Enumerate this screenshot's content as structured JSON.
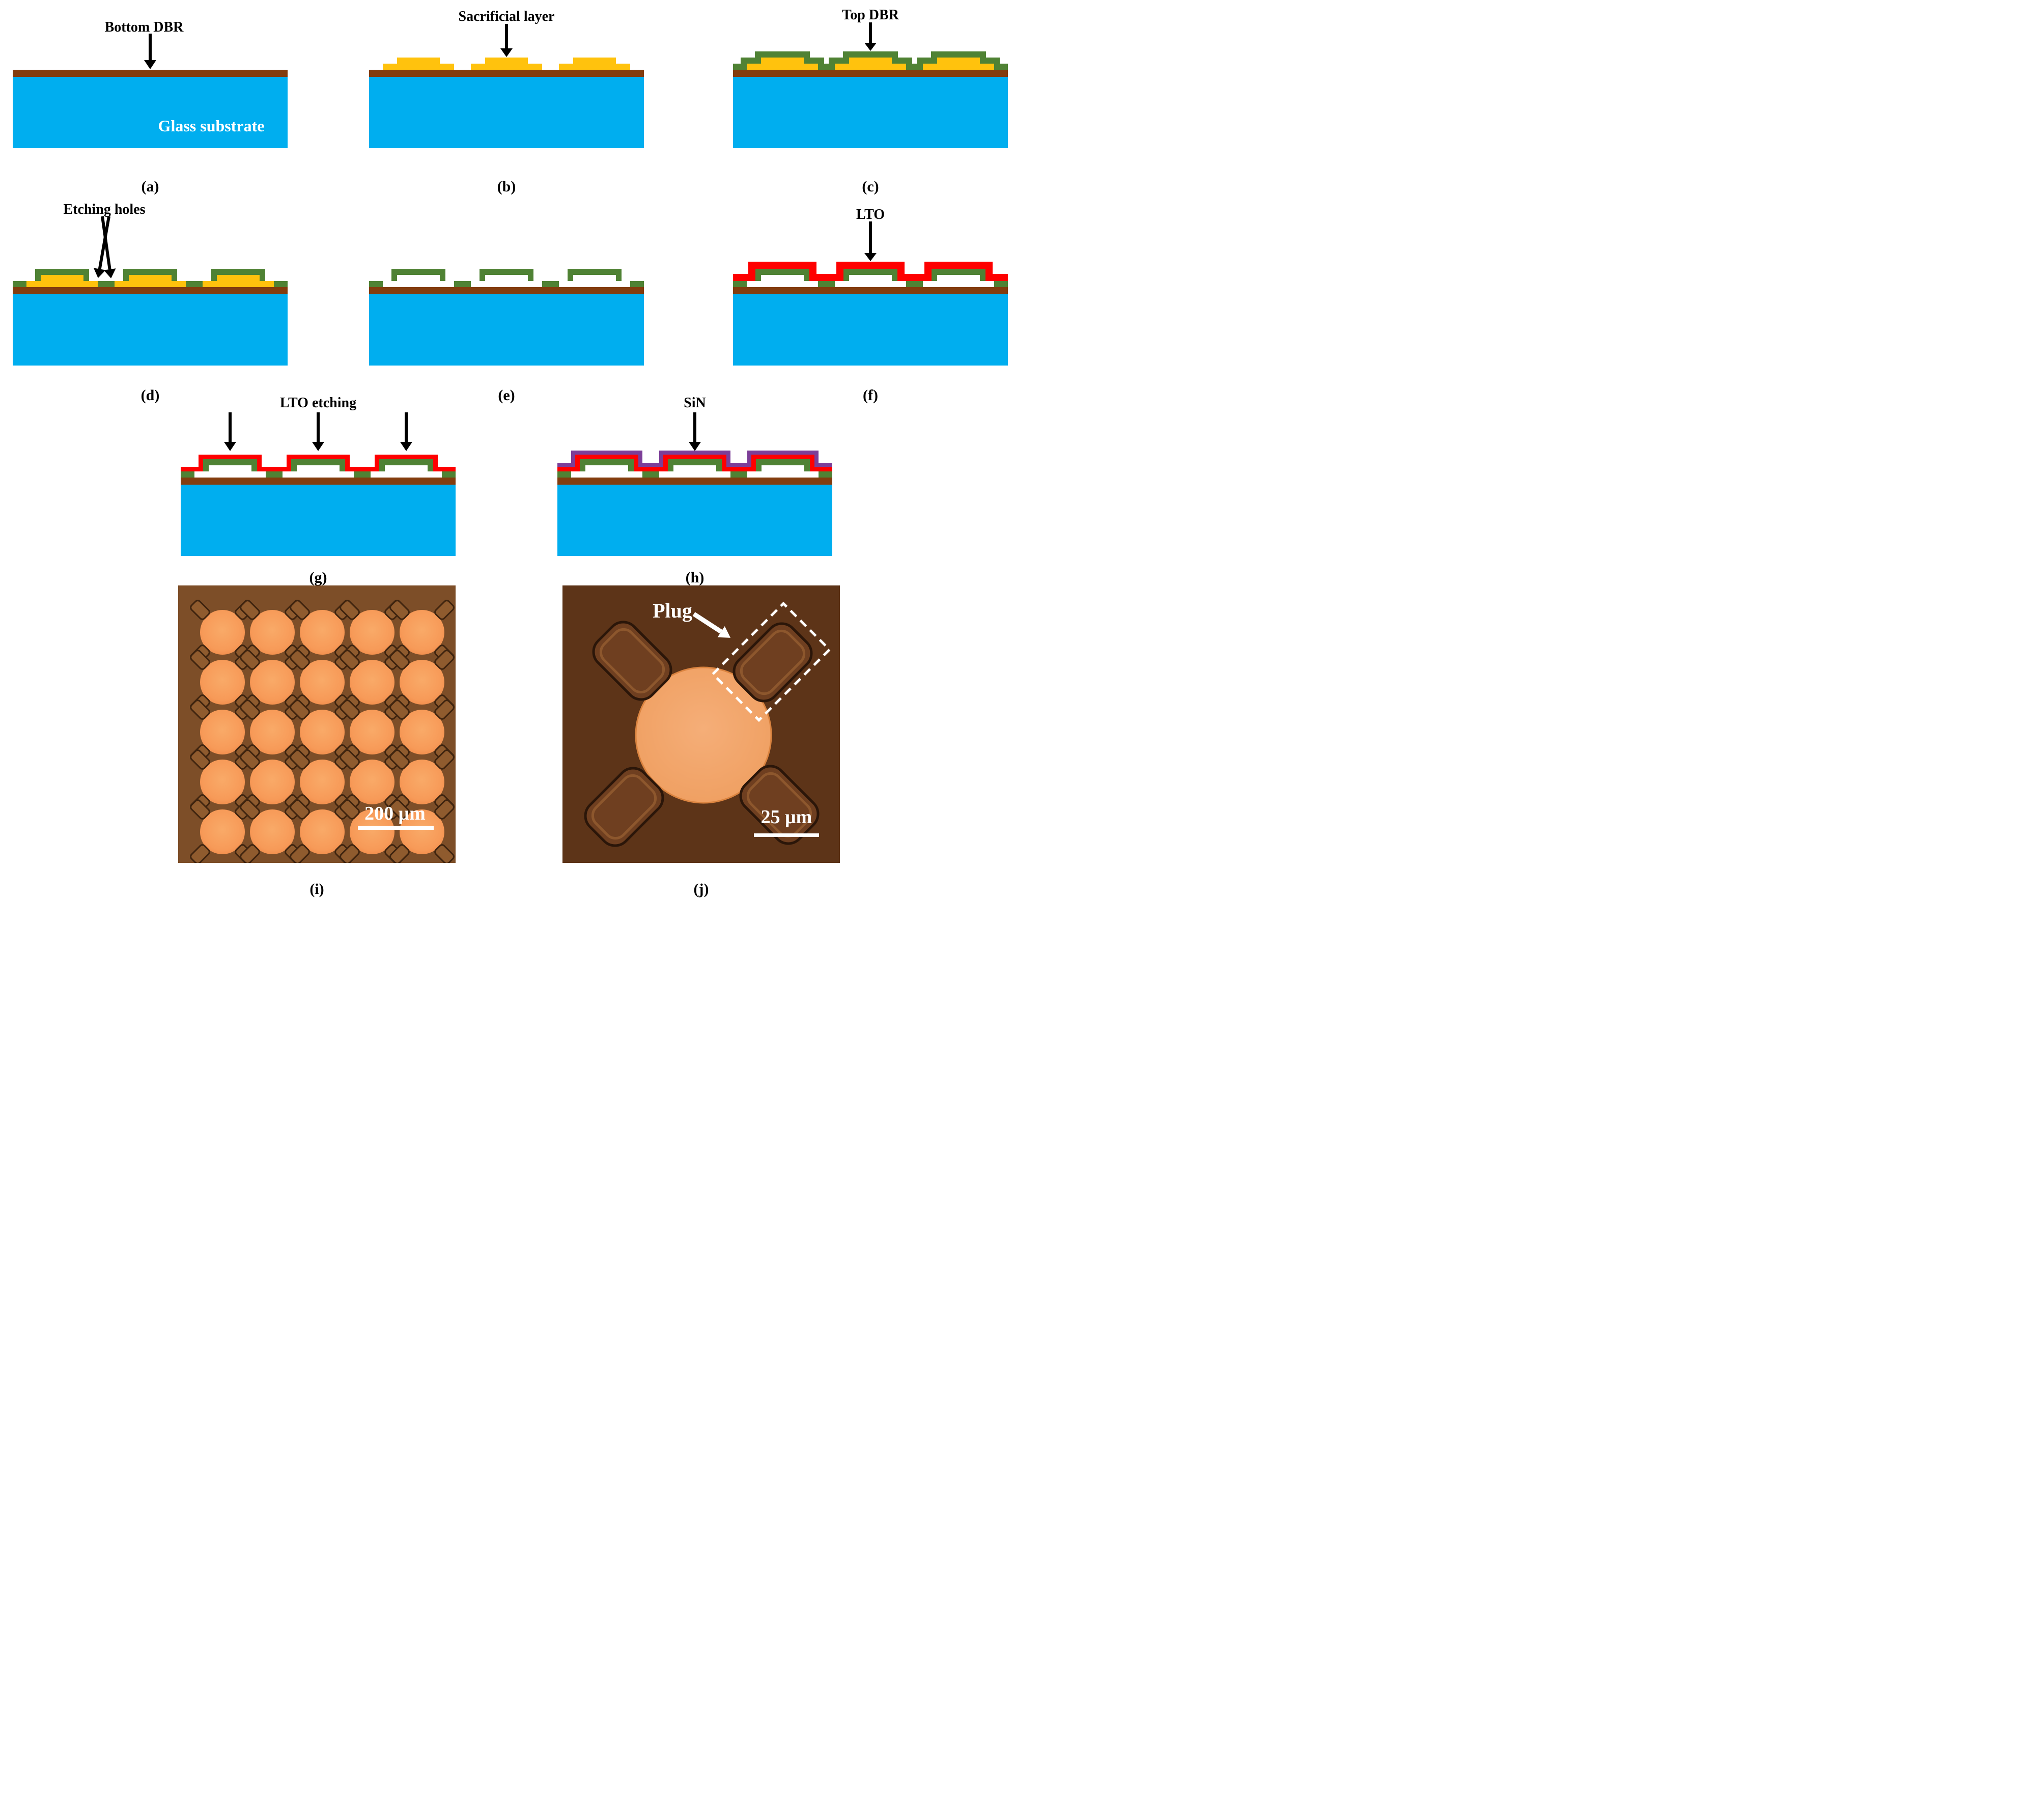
{
  "figure": {
    "type": "fabrication-process-diagram",
    "rows": 4
  },
  "colors": {
    "substrate_blue": "#00AEEF",
    "bottom_dbr_brown": "#833C0E",
    "sacrificial_yellow": "#FFC20D",
    "top_dbr_green": "#4F8234",
    "lto_red": "#FE0000",
    "sin_purple": "#7C3E98",
    "micrograph_array_background": "#7D4E28",
    "micrograph_close_background": "#5D3418",
    "membrane_orange": "#F79A58",
    "plug_dark_brown": "#6F3F20",
    "annotation_white": "#FFFFFF",
    "annotation_black": "#000000"
  },
  "panels": {
    "a": {
      "caption": "(a)",
      "label": "Bottom DBR",
      "substrate_label": "Glass substrate"
    },
    "b": {
      "caption": "(b)",
      "label": "Sacrificial layer"
    },
    "c": {
      "caption": "(c)",
      "label": "Top DBR"
    },
    "d": {
      "caption": "(d)",
      "label": "Etching holes"
    },
    "e": {
      "caption": "(e)"
    },
    "f": {
      "caption": "(f)",
      "label": "LTO"
    },
    "g": {
      "caption": "(g)",
      "label": "LTO etching"
    },
    "h": {
      "caption": "(h)",
      "label": "SiN"
    },
    "i": {
      "caption": "(i)",
      "scale_bar_label": "200 μm"
    },
    "j": {
      "caption": "(j)",
      "label": "Plug",
      "scale_bar_label": "25 μm"
    }
  }
}
